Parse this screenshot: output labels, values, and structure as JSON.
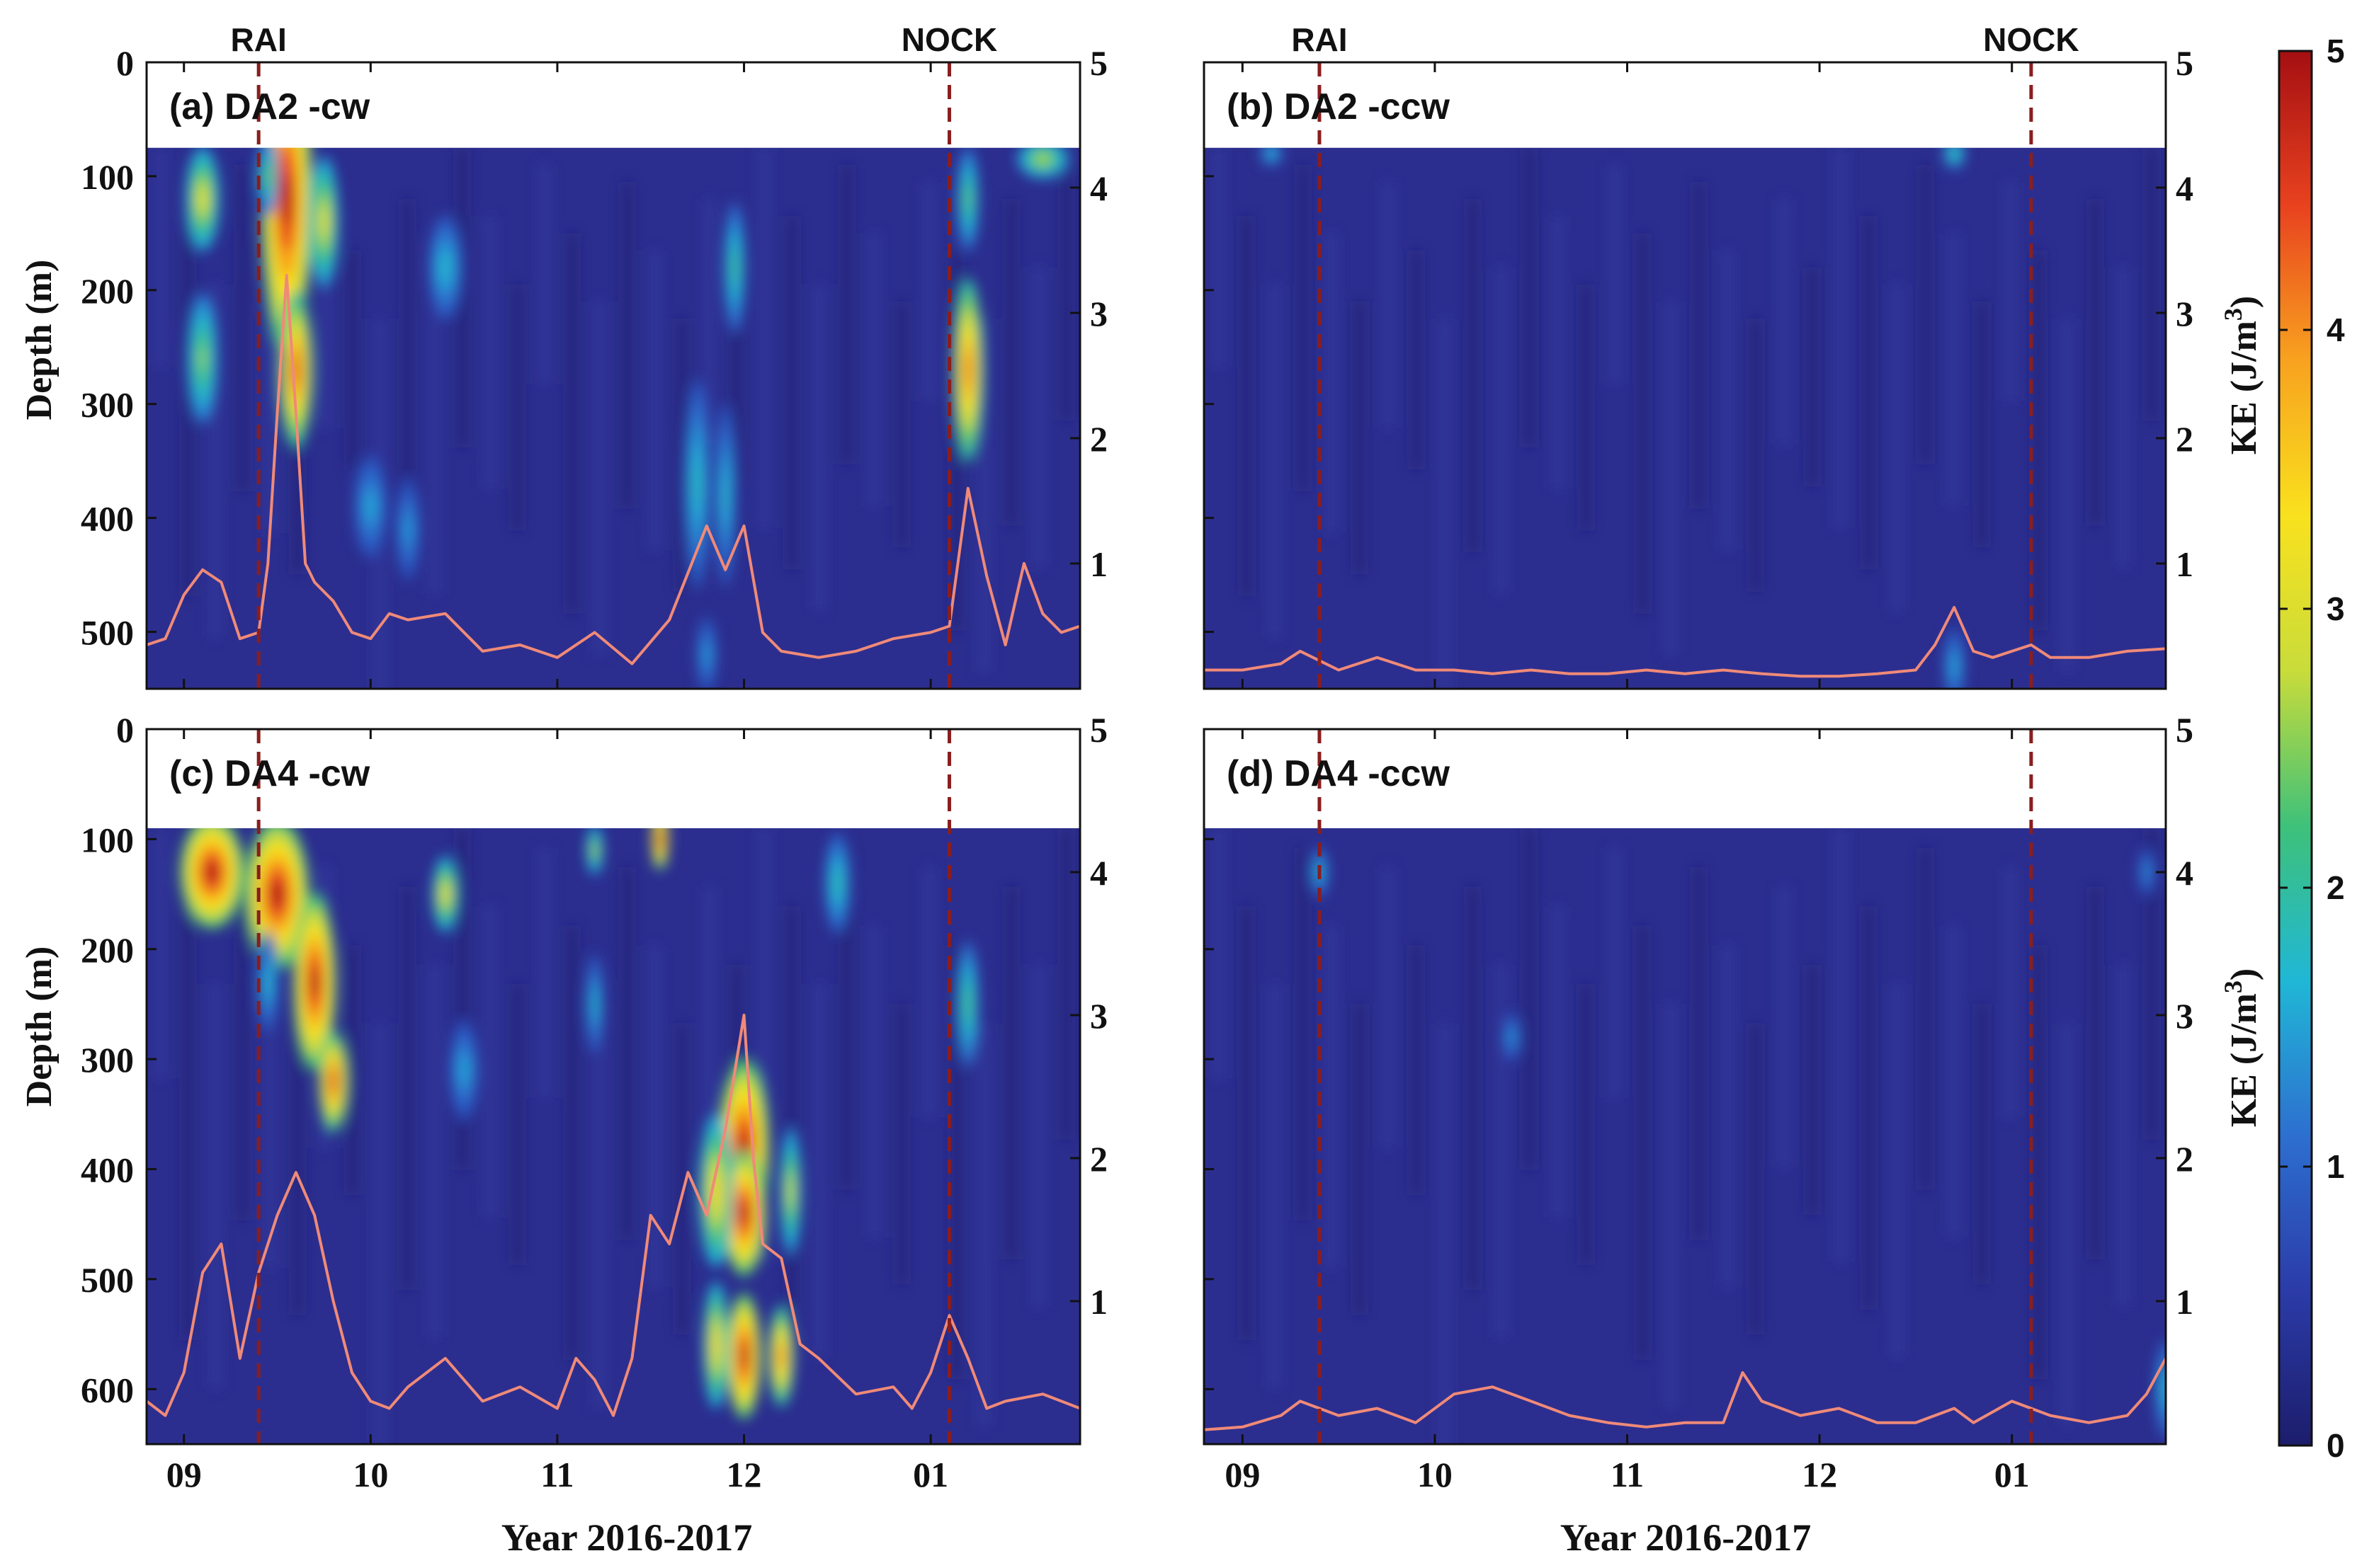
{
  "figure": {
    "events": [
      {
        "label": "RAI",
        "time": 0.4
      },
      {
        "label": "NOCK",
        "time": 4.1
      }
    ],
    "time_ticks": [
      {
        "t": 0.0,
        "label": "09"
      },
      {
        "t": 1.0,
        "label": "10"
      },
      {
        "t": 2.0,
        "label": "11"
      },
      {
        "t": 3.0,
        "label": "12"
      },
      {
        "t": 4.0,
        "label": "01"
      }
    ],
    "xlabel": "Year 2016-2017",
    "ylabel_left": "Depth (m)",
    "ylabel_right": "KE (J/m",
    "ylabel_right_sup": "3",
    "ylabel_right_close": ")"
  },
  "colorbar": {
    "min": 0,
    "max": 5,
    "ticks": [
      "0",
      "1",
      "2",
      "3",
      "4",
      "5"
    ],
    "colors": [
      "#1c1d6b",
      "#2b3ba8",
      "#2d6fcf",
      "#20b7d6",
      "#3ec17a",
      "#c9dc3a",
      "#f9e11e",
      "#f8a21f",
      "#e8421f",
      "#a50f12"
    ]
  },
  "panels": [
    {
      "id": "a",
      "label": "(a)",
      "name": "DA2 -cw",
      "depth_ticks": [
        "0",
        "100",
        "200",
        "300",
        "400",
        "500"
      ],
      "depth_range": [
        0,
        550
      ],
      "data_top": 75,
      "right_ticks": [
        "1",
        "2",
        "3",
        "4",
        "5"
      ],
      "xticks_visible": false,
      "show_event_labels": true
    },
    {
      "id": "b",
      "label": "(b)",
      "name": "DA2 -ccw",
      "depth_ticks": [],
      "depth_range": [
        0,
        550
      ],
      "data_top": 75,
      "right_ticks": [
        "1",
        "2",
        "3",
        "4",
        "5"
      ],
      "xticks_visible": false,
      "show_event_labels": true
    },
    {
      "id": "c",
      "label": "(c)",
      "name": "DA4 -cw",
      "depth_ticks": [
        "0",
        "100",
        "200",
        "300",
        "400",
        "500",
        "600"
      ],
      "depth_range": [
        0,
        650
      ],
      "data_top": 90,
      "right_ticks": [
        "1",
        "2",
        "3",
        "4",
        "5"
      ],
      "xticks_visible": true,
      "show_event_labels": false
    },
    {
      "id": "d",
      "label": "(d)",
      "name": "DA4 -ccw",
      "depth_ticks": [],
      "depth_range": [
        0,
        650
      ],
      "data_top": 90,
      "right_ticks": [
        "1",
        "2",
        "3",
        "4",
        "5"
      ],
      "xticks_visible": true,
      "show_event_labels": false
    }
  ],
  "chart_data": [
    {
      "type": "heatmap",
      "title": "(a) DA2 -cw",
      "xlabel": "Year 2016-2017",
      "ylabel": "Depth (m)",
      "y2label": "KE (J/m3)",
      "xlim": [
        -0.2,
        4.8
      ],
      "ylim": [
        550,
        0
      ],
      "y2lim": [
        0,
        5
      ],
      "clim": [
        0,
        5
      ],
      "hotspots": [
        {
          "t": 0.55,
          "depth": 120,
          "intensity": 5.0,
          "t_width": 0.12,
          "d_width": 120
        },
        {
          "t": 0.6,
          "depth": 270,
          "intensity": 4.5,
          "t_width": 0.08,
          "d_width": 60
        },
        {
          "t": 0.1,
          "depth": 120,
          "intensity": 3.2,
          "t_width": 0.08,
          "d_width": 40
        },
        {
          "t": 0.1,
          "depth": 260,
          "intensity": 2.6,
          "t_width": 0.07,
          "d_width": 50
        },
        {
          "t": 0.75,
          "depth": 140,
          "intensity": 3.2,
          "t_width": 0.07,
          "d_width": 50
        },
        {
          "t": 0.45,
          "depth": 100,
          "intensity": 2.5,
          "t_width": 0.05,
          "d_width": 30
        },
        {
          "t": 1.4,
          "depth": 180,
          "intensity": 1.8,
          "t_width": 0.08,
          "d_width": 40
        },
        {
          "t": 1.0,
          "depth": 390,
          "intensity": 1.6,
          "t_width": 0.08,
          "d_width": 40
        },
        {
          "t": 1.2,
          "depth": 410,
          "intensity": 1.5,
          "t_width": 0.06,
          "d_width": 40
        },
        {
          "t": 2.75,
          "depth": 370,
          "intensity": 1.9,
          "t_width": 0.06,
          "d_width": 80
        },
        {
          "t": 2.95,
          "depth": 180,
          "intensity": 2.2,
          "t_width": 0.05,
          "d_width": 50
        },
        {
          "t": 2.9,
          "depth": 380,
          "intensity": 1.8,
          "t_width": 0.05,
          "d_width": 70
        },
        {
          "t": 4.2,
          "depth": 270,
          "intensity": 4.3,
          "t_width": 0.07,
          "d_width": 70
        },
        {
          "t": 4.2,
          "depth": 120,
          "intensity": 2.4,
          "t_width": 0.05,
          "d_width": 40
        },
        {
          "t": 4.6,
          "depth": 85,
          "intensity": 2.8,
          "t_width": 0.12,
          "d_width": 15
        },
        {
          "t": 2.8,
          "depth": 520,
          "intensity": 1.5,
          "t_width": 0.05,
          "d_width": 30
        }
      ],
      "series": [
        {
          "name": "depth-averaged KE",
          "x": [
            -0.2,
            -0.1,
            0.0,
            0.1,
            0.2,
            0.3,
            0.4,
            0.45,
            0.5,
            0.55,
            0.6,
            0.65,
            0.7,
            0.8,
            0.9,
            1.0,
            1.1,
            1.2,
            1.4,
            1.6,
            1.8,
            2.0,
            2.2,
            2.4,
            2.6,
            2.8,
            2.9,
            3.0,
            3.1,
            3.2,
            3.4,
            3.6,
            3.8,
            4.0,
            4.1,
            4.2,
            4.3,
            4.4,
            4.5,
            4.6,
            4.7,
            4.8
          ],
          "y": [
            0.35,
            0.4,
            0.75,
            0.95,
            0.85,
            0.4,
            0.45,
            1.0,
            2.2,
            3.3,
            2.2,
            1.0,
            0.85,
            0.7,
            0.45,
            0.4,
            0.6,
            0.55,
            0.6,
            0.3,
            0.35,
            0.25,
            0.45,
            0.2,
            0.55,
            1.3,
            0.95,
            1.3,
            0.45,
            0.3,
            0.25,
            0.3,
            0.4,
            0.45,
            0.5,
            1.6,
            0.9,
            0.35,
            1.0,
            0.6,
            0.45,
            0.5
          ]
        }
      ]
    },
    {
      "type": "heatmap",
      "title": "(b) DA2 -ccw",
      "xlabel": "Year 2016-2017",
      "ylabel": "",
      "y2label": "KE (J/m3)",
      "xlim": [
        -0.2,
        4.8
      ],
      "ylim": [
        550,
        0
      ],
      "y2lim": [
        0,
        5
      ],
      "clim": [
        0,
        5
      ],
      "hotspots": [
        {
          "t": 3.7,
          "depth": 530,
          "intensity": 1.6,
          "t_width": 0.05,
          "d_width": 30
        },
        {
          "t": 3.7,
          "depth": 80,
          "intensity": 2.2,
          "t_width": 0.05,
          "d_width": 12
        },
        {
          "t": 0.15,
          "depth": 80,
          "intensity": 1.8,
          "t_width": 0.05,
          "d_width": 10
        }
      ],
      "series": [
        {
          "name": "depth-averaged KE",
          "x": [
            -0.2,
            0.0,
            0.2,
            0.3,
            0.5,
            0.7,
            0.9,
            1.1,
            1.3,
            1.5,
            1.7,
            1.9,
            2.1,
            2.3,
            2.5,
            2.7,
            2.9,
            3.1,
            3.3,
            3.5,
            3.6,
            3.7,
            3.8,
            3.9,
            4.1,
            4.2,
            4.4,
            4.6,
            4.8
          ],
          "y": [
            0.15,
            0.15,
            0.2,
            0.3,
            0.15,
            0.25,
            0.15,
            0.15,
            0.12,
            0.15,
            0.12,
            0.12,
            0.15,
            0.12,
            0.15,
            0.12,
            0.1,
            0.1,
            0.12,
            0.15,
            0.35,
            0.65,
            0.3,
            0.25,
            0.35,
            0.25,
            0.25,
            0.3,
            0.32
          ]
        }
      ]
    },
    {
      "type": "heatmap",
      "title": "(c) DA4 -cw",
      "xlabel": "Year 2016-2017",
      "ylabel": "Depth (m)",
      "y2label": "KE (J/m3)",
      "xlim": [
        -0.2,
        4.8
      ],
      "ylim": [
        650,
        0
      ],
      "y2lim": [
        0,
        5
      ],
      "clim": [
        0,
        5
      ],
      "hotspots": [
        {
          "t": 0.15,
          "depth": 130,
          "intensity": 5.0,
          "t_width": 0.15,
          "d_width": 45
        },
        {
          "t": 0.5,
          "depth": 150,
          "intensity": 5.0,
          "t_width": 0.15,
          "d_width": 60
        },
        {
          "t": 0.7,
          "depth": 230,
          "intensity": 5.0,
          "t_width": 0.1,
          "d_width": 70
        },
        {
          "t": 0.8,
          "depth": 320,
          "intensity": 4.6,
          "t_width": 0.07,
          "d_width": 40
        },
        {
          "t": 1.4,
          "depth": 150,
          "intensity": 3.3,
          "t_width": 0.06,
          "d_width": 30
        },
        {
          "t": 2.2,
          "depth": 110,
          "intensity": 2.8,
          "t_width": 0.04,
          "d_width": 20
        },
        {
          "t": 2.55,
          "depth": 100,
          "intensity": 4.8,
          "t_width": 0.04,
          "d_width": 25
        },
        {
          "t": 2.2,
          "depth": 250,
          "intensity": 1.8,
          "t_width": 0.04,
          "d_width": 40
        },
        {
          "t": 3.0,
          "depth": 380,
          "intensity": 5.0,
          "t_width": 0.12,
          "d_width": 70
        },
        {
          "t": 3.0,
          "depth": 440,
          "intensity": 5.0,
          "t_width": 0.1,
          "d_width": 50
        },
        {
          "t": 2.85,
          "depth": 420,
          "intensity": 3.5,
          "t_width": 0.08,
          "d_width": 60
        },
        {
          "t": 3.0,
          "depth": 570,
          "intensity": 5.0,
          "t_width": 0.08,
          "d_width": 50
        },
        {
          "t": 3.2,
          "depth": 570,
          "intensity": 4.2,
          "t_width": 0.06,
          "d_width": 40
        },
        {
          "t": 3.25,
          "depth": 420,
          "intensity": 3.0,
          "t_width": 0.05,
          "d_width": 50
        },
        {
          "t": 2.85,
          "depth": 560,
          "intensity": 3.5,
          "t_width": 0.06,
          "d_width": 50
        },
        {
          "t": 4.2,
          "depth": 250,
          "intensity": 2.3,
          "t_width": 0.05,
          "d_width": 50
        },
        {
          "t": 3.5,
          "depth": 140,
          "intensity": 2.0,
          "t_width": 0.06,
          "d_width": 40
        },
        {
          "t": 0.45,
          "depth": 230,
          "intensity": 1.8,
          "t_width": 0.05,
          "d_width": 40
        },
        {
          "t": 1.5,
          "depth": 310,
          "intensity": 1.6,
          "t_width": 0.07,
          "d_width": 40
        }
      ],
      "series": [
        {
          "name": "depth-averaged KE",
          "x": [
            -0.2,
            -0.1,
            0.0,
            0.1,
            0.2,
            0.3,
            0.4,
            0.5,
            0.6,
            0.7,
            0.8,
            0.9,
            1.0,
            1.1,
            1.2,
            1.4,
            1.6,
            1.8,
            2.0,
            2.1,
            2.2,
            2.3,
            2.4,
            2.5,
            2.6,
            2.7,
            2.8,
            2.9,
            3.0,
            3.05,
            3.1,
            3.2,
            3.3,
            3.4,
            3.6,
            3.8,
            3.9,
            4.0,
            4.1,
            4.2,
            4.3,
            4.4,
            4.6,
            4.8
          ],
          "y": [
            0.3,
            0.2,
            0.5,
            1.2,
            1.4,
            0.6,
            1.2,
            1.6,
            1.9,
            1.6,
            1.0,
            0.5,
            0.3,
            0.25,
            0.4,
            0.6,
            0.3,
            0.4,
            0.25,
            0.6,
            0.45,
            0.2,
            0.6,
            1.6,
            1.4,
            1.9,
            1.6,
            2.2,
            3.0,
            2.0,
            1.4,
            1.3,
            0.7,
            0.6,
            0.35,
            0.4,
            0.25,
            0.5,
            0.9,
            0.6,
            0.25,
            0.3,
            0.35,
            0.25
          ]
        }
      ]
    },
    {
      "type": "heatmap",
      "title": "(d) DA4 -ccw",
      "xlabel": "Year 2016-2017",
      "ylabel": "",
      "y2label": "KE (J/m3)",
      "xlim": [
        -0.2,
        4.8
      ],
      "ylim": [
        650,
        0
      ],
      "y2lim": [
        0,
        5
      ],
      "clim": [
        0,
        5
      ],
      "hotspots": [
        {
          "t": 0.4,
          "depth": 130,
          "intensity": 1.8,
          "t_width": 0.04,
          "d_width": 20
        },
        {
          "t": 1.4,
          "depth": 280,
          "intensity": 1.5,
          "t_width": 0.04,
          "d_width": 20
        },
        {
          "t": 4.8,
          "depth": 600,
          "intensity": 1.8,
          "t_width": 0.05,
          "d_width": 40
        },
        {
          "t": 4.7,
          "depth": 130,
          "intensity": 1.4,
          "t_width": 0.04,
          "d_width": 20
        }
      ],
      "series": [
        {
          "name": "depth-averaged KE",
          "x": [
            -0.2,
            0.0,
            0.2,
            0.3,
            0.4,
            0.5,
            0.7,
            0.9,
            1.1,
            1.3,
            1.5,
            1.7,
            1.9,
            2.1,
            2.3,
            2.5,
            2.6,
            2.7,
            2.9,
            3.1,
            3.3,
            3.5,
            3.7,
            3.8,
            4.0,
            4.2,
            4.4,
            4.6,
            4.7,
            4.8
          ],
          "y": [
            0.1,
            0.12,
            0.2,
            0.3,
            0.25,
            0.2,
            0.25,
            0.15,
            0.35,
            0.4,
            0.3,
            0.2,
            0.15,
            0.12,
            0.15,
            0.15,
            0.5,
            0.3,
            0.2,
            0.25,
            0.15,
            0.15,
            0.25,
            0.15,
            0.3,
            0.2,
            0.15,
            0.2,
            0.35,
            0.6
          ]
        }
      ]
    }
  ]
}
